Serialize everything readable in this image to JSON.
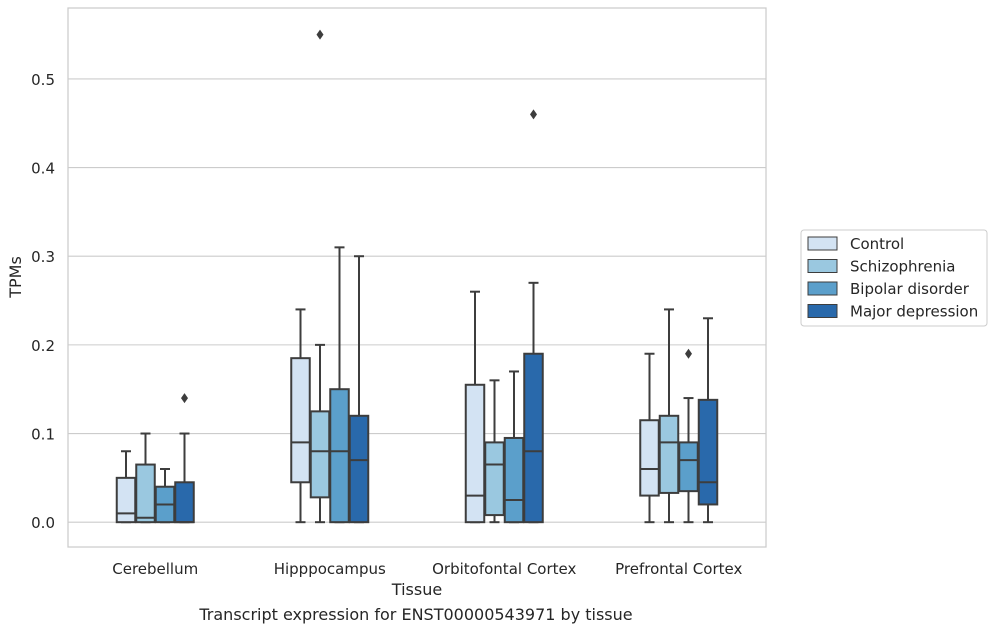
{
  "chart_data": {
    "type": "box",
    "xlabel": "Tissue",
    "ylabel": "TPMs",
    "caption": "Transcript expression for ENST00000543971 by tissue",
    "ylim": [
      -0.028,
      0.58
    ],
    "yticks": [
      0.0,
      0.1,
      0.2,
      0.3,
      0.4,
      0.5
    ],
    "ytick_labels": [
      "0.0",
      "0.1",
      "0.2",
      "0.3",
      "0.4",
      "0.5"
    ],
    "grid": "horizontal",
    "legend_position": "right",
    "categories": [
      "Cerebellum",
      "Hipppocampus",
      "Orbitofontal Cortex",
      "Prefrontal Cortex"
    ],
    "series": [
      {
        "name": "Control",
        "color": "#d3e3f3",
        "boxes": [
          {
            "whisker_low": 0.0,
            "q1": 0.0,
            "median": 0.01,
            "q3": 0.05,
            "whisker_high": 0.08,
            "outliers": []
          },
          {
            "whisker_low": 0.0,
            "q1": 0.045,
            "median": 0.09,
            "q3": 0.185,
            "whisker_high": 0.24,
            "outliers": []
          },
          {
            "whisker_low": 0.0,
            "q1": 0.0,
            "median": 0.03,
            "q3": 0.155,
            "whisker_high": 0.26,
            "outliers": []
          },
          {
            "whisker_low": 0.0,
            "q1": 0.03,
            "median": 0.06,
            "q3": 0.115,
            "whisker_high": 0.19,
            "outliers": []
          }
        ]
      },
      {
        "name": "Schizophrenia",
        "color": "#9ac8e0",
        "boxes": [
          {
            "whisker_low": 0.0,
            "q1": 0.0,
            "median": 0.005,
            "q3": 0.065,
            "whisker_high": 0.1,
            "outliers": []
          },
          {
            "whisker_low": 0.0,
            "q1": 0.028,
            "median": 0.08,
            "q3": 0.125,
            "whisker_high": 0.2,
            "outliers": [
              0.55
            ]
          },
          {
            "whisker_low": 0.0,
            "q1": 0.008,
            "median": 0.065,
            "q3": 0.09,
            "whisker_high": 0.16,
            "outliers": []
          },
          {
            "whisker_low": 0.0,
            "q1": 0.033,
            "median": 0.09,
            "q3": 0.12,
            "whisker_high": 0.24,
            "outliers": []
          }
        ]
      },
      {
        "name": "Bipolar disorder",
        "color": "#5b9fcb",
        "boxes": [
          {
            "whisker_low": 0.0,
            "q1": 0.0,
            "median": 0.02,
            "q3": 0.04,
            "whisker_high": 0.06,
            "outliers": []
          },
          {
            "whisker_low": 0.0,
            "q1": 0.0,
            "median": 0.08,
            "q3": 0.15,
            "whisker_high": 0.31,
            "outliers": []
          },
          {
            "whisker_low": 0.0,
            "q1": 0.0,
            "median": 0.025,
            "q3": 0.095,
            "whisker_high": 0.17,
            "outliers": []
          },
          {
            "whisker_low": 0.0,
            "q1": 0.035,
            "median": 0.07,
            "q3": 0.09,
            "whisker_high": 0.14,
            "outliers": [
              0.19
            ]
          }
        ]
      },
      {
        "name": "Major depression",
        "color": "#2969ab",
        "boxes": [
          {
            "whisker_low": 0.0,
            "q1": 0.0,
            "median": 0.0,
            "q3": 0.045,
            "whisker_high": 0.1,
            "outliers": [
              0.14
            ]
          },
          {
            "whisker_low": 0.0,
            "q1": 0.0,
            "median": 0.07,
            "q3": 0.12,
            "whisker_high": 0.3,
            "outliers": []
          },
          {
            "whisker_low": 0.0,
            "q1": 0.0,
            "median": 0.08,
            "q3": 0.19,
            "whisker_high": 0.27,
            "outliers": [
              0.46
            ]
          },
          {
            "whisker_low": 0.0,
            "q1": 0.02,
            "median": 0.045,
            "q3": 0.138,
            "whisker_high": 0.23,
            "outliers": []
          }
        ]
      }
    ]
  }
}
